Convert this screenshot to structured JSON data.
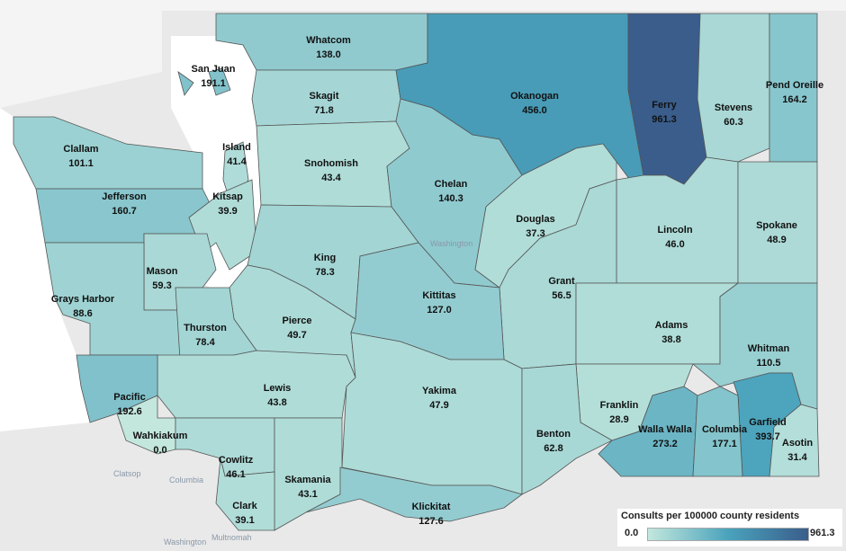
{
  "metric_label": "Consults per 100000 county residents",
  "legend": {
    "title": "Consults per 100000 county residents",
    "min": "0.0",
    "max": "961.3",
    "color_min": "#c3e7dd",
    "color_mid": "#4aa3bc",
    "color_max": "#3a5d8b"
  },
  "background_labels": [
    "Washington",
    "Clatsop",
    "Columbia",
    "Washington",
    "Multnomah"
  ],
  "counties": [
    {
      "name": "Whatcom",
      "value": "138.0"
    },
    {
      "name": "San Juan",
      "value": "191.1"
    },
    {
      "name": "Skagit",
      "value": "71.8"
    },
    {
      "name": "Okanogan",
      "value": "456.0"
    },
    {
      "name": "Ferry",
      "value": "961.3"
    },
    {
      "name": "Stevens",
      "value": "60.3"
    },
    {
      "name": "Pend Oreille",
      "value": "164.2"
    },
    {
      "name": "Clallam",
      "value": "101.1"
    },
    {
      "name": "Island",
      "value": "41.4"
    },
    {
      "name": "Snohomish",
      "value": "43.4"
    },
    {
      "name": "Chelan",
      "value": "140.3"
    },
    {
      "name": "Jefferson",
      "value": "160.7"
    },
    {
      "name": "Kitsap",
      "value": "39.9"
    },
    {
      "name": "Douglas",
      "value": "37.3"
    },
    {
      "name": "Lincoln",
      "value": "46.0"
    },
    {
      "name": "Spokane",
      "value": "48.9"
    },
    {
      "name": "King",
      "value": "78.3"
    },
    {
      "name": "Mason",
      "value": "59.3"
    },
    {
      "name": "Grant",
      "value": "56.5"
    },
    {
      "name": "Grays Harbor",
      "value": "88.6"
    },
    {
      "name": "Kittitas",
      "value": "127.0"
    },
    {
      "name": "Pierce",
      "value": "49.7"
    },
    {
      "name": "Thurston",
      "value": "78.4"
    },
    {
      "name": "Adams",
      "value": "38.8"
    },
    {
      "name": "Whitman",
      "value": "110.5"
    },
    {
      "name": "Lewis",
      "value": "43.8"
    },
    {
      "name": "Pacific",
      "value": "192.6"
    },
    {
      "name": "Yakima",
      "value": "47.9"
    },
    {
      "name": "Franklin",
      "value": "28.9"
    },
    {
      "name": "Garfield",
      "value": "393.7"
    },
    {
      "name": "Benton",
      "value": "62.8"
    },
    {
      "name": "Wahkiakum",
      "value": "0.0"
    },
    {
      "name": "Walla Walla",
      "value": "273.2"
    },
    {
      "name": "Columbia",
      "value": "177.1"
    },
    {
      "name": "Asotin",
      "value": "31.4"
    },
    {
      "name": "Cowlitz",
      "value": "46.1"
    },
    {
      "name": "Skamania",
      "value": "43.1"
    },
    {
      "name": "Clark",
      "value": "39.1"
    },
    {
      "name": "Klickitat",
      "value": "127.6"
    }
  ]
}
